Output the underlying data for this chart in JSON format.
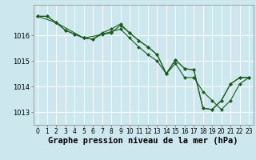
{
  "background_color": "#cce8ee",
  "grid_color": "#ffffff",
  "line_color": "#1a5c1a",
  "marker_color": "#1a5c1a",
  "xlabel": "Graphe pression niveau de la mer (hPa)",
  "xlabel_fontsize": 7.5,
  "tick_fontsize": 6,
  "xlim": [
    -0.5,
    23.5
  ],
  "ylim": [
    1012.5,
    1017.2
  ],
  "yticks": [
    1013,
    1014,
    1015,
    1016
  ],
  "xticks": [
    0,
    1,
    2,
    3,
    4,
    5,
    6,
    7,
    8,
    9,
    10,
    11,
    12,
    13,
    14,
    15,
    16,
    17,
    18,
    19,
    20,
    21,
    22,
    23
  ],
  "series": {
    "line1": {
      "x": [
        0,
        1,
        2,
        3,
        4,
        5,
        6,
        7,
        8,
        9,
        10,
        11,
        12,
        13,
        14,
        15,
        16,
        17,
        18,
        19,
        20,
        21,
        22,
        23
      ],
      "y": [
        1016.75,
        1016.75,
        1016.5,
        1016.2,
        1016.05,
        1015.9,
        1015.85,
        1016.1,
        1016.25,
        1016.45,
        1016.1,
        1015.8,
        1015.55,
        1015.25,
        1014.5,
        1015.05,
        1014.7,
        1014.65,
        1013.15,
        1013.1,
        1013.45,
        1014.1,
        1014.35,
        1014.35
      ]
    },
    "line2": {
      "x": [
        0,
        1,
        2,
        3,
        4,
        5,
        6,
        7,
        8,
        9,
        10,
        11,
        12,
        13,
        14,
        15,
        16,
        17,
        18,
        19,
        20,
        21,
        22,
        23
      ],
      "y": [
        1016.75,
        1016.75,
        1016.5,
        1016.2,
        1016.05,
        1015.9,
        1015.85,
        1016.05,
        1016.15,
        1016.25,
        1015.9,
        1015.55,
        1015.25,
        1015.0,
        1014.5,
        1014.9,
        1014.35,
        1014.35,
        1013.8,
        1013.45,
        1013.1,
        1013.45,
        1014.1,
        1014.35
      ]
    },
    "line3": {
      "x": [
        0,
        2,
        5,
        8,
        9,
        10,
        11,
        12,
        13,
        14,
        15,
        16,
        17,
        18,
        19,
        20,
        21,
        22,
        23
      ],
      "y": [
        1016.75,
        1016.5,
        1015.9,
        1016.1,
        1016.4,
        1016.1,
        1015.8,
        1015.55,
        1015.25,
        1014.5,
        1015.05,
        1014.7,
        1014.65,
        1013.15,
        1013.1,
        1013.45,
        1014.1,
        1014.35,
        1014.35
      ]
    }
  }
}
